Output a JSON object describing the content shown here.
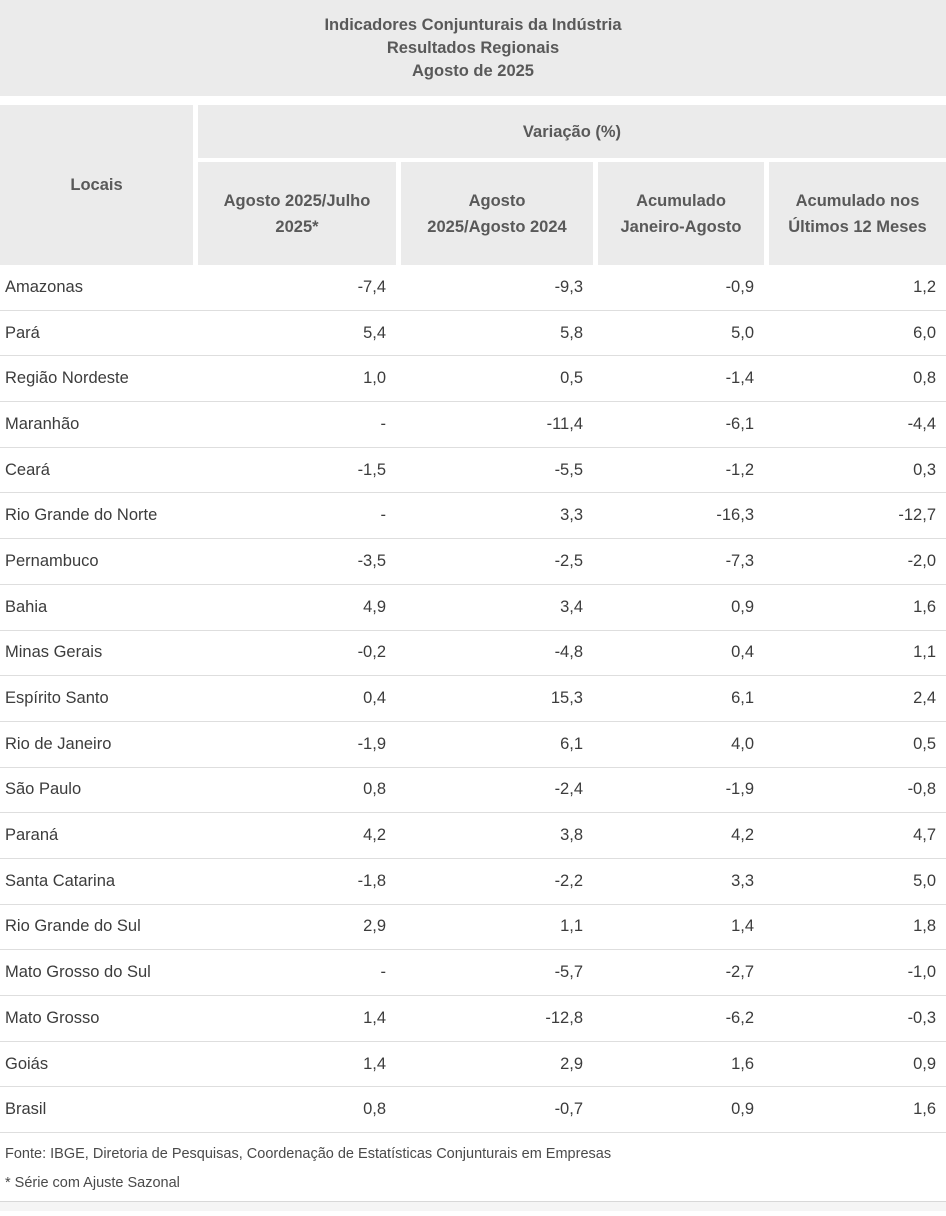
{
  "header": {
    "title_lines": [
      "Indicadores Conjunturais da Indústria",
      "Resultados Regionais",
      "Agosto de 2025"
    ]
  },
  "chart_data": {
    "type": "table",
    "title": "Indicadores Conjunturais da Indústria - Resultados Regionais - Agosto de 2025",
    "row_dimension": "Locais",
    "value_unit": "Variação (%)",
    "columns": [
      "Agosto 2025/Julho 2025*",
      "Agosto 2025/Agosto 2024",
      "Acumulado Janeiro-Agosto",
      "Acumulado nos Últimos 12 Meses"
    ],
    "rows": [
      {
        "local": "Amazonas",
        "values": [
          "-7,4",
          "-9,3",
          "-0,9",
          "1,2"
        ]
      },
      {
        "local": "Pará",
        "values": [
          "5,4",
          "5,8",
          "5,0",
          "6,0"
        ]
      },
      {
        "local": "Região Nordeste",
        "values": [
          "1,0",
          "0,5",
          "-1,4",
          "0,8"
        ]
      },
      {
        "local": "Maranhão",
        "values": [
          "-",
          "-11,4",
          "-6,1",
          "-4,4"
        ]
      },
      {
        "local": "Ceará",
        "values": [
          "-1,5",
          "-5,5",
          "-1,2",
          "0,3"
        ]
      },
      {
        "local": "Rio Grande do Norte",
        "values": [
          "-",
          "3,3",
          "-16,3",
          "-12,7"
        ]
      },
      {
        "local": "Pernambuco",
        "values": [
          "-3,5",
          "-2,5",
          "-7,3",
          "-2,0"
        ]
      },
      {
        "local": "Bahia",
        "values": [
          "4,9",
          "3,4",
          "0,9",
          "1,6"
        ]
      },
      {
        "local": "Minas Gerais",
        "values": [
          "-0,2",
          "-4,8",
          "0,4",
          "1,1"
        ]
      },
      {
        "local": "Espírito Santo",
        "values": [
          "0,4",
          "15,3",
          "6,1",
          "2,4"
        ]
      },
      {
        "local": "Rio de Janeiro",
        "values": [
          "-1,9",
          "6,1",
          "4,0",
          "0,5"
        ]
      },
      {
        "local": "São Paulo",
        "values": [
          "0,8",
          "-2,4",
          "-1,9",
          "-0,8"
        ]
      },
      {
        "local": "Paraná",
        "values": [
          "4,2",
          "3,8",
          "4,2",
          "4,7"
        ]
      },
      {
        "local": "Santa Catarina",
        "values": [
          "-1,8",
          "-2,2",
          "3,3",
          "5,0"
        ]
      },
      {
        "local": "Rio Grande do Sul",
        "values": [
          "2,9",
          "1,1",
          "1,4",
          "1,8"
        ]
      },
      {
        "local": "Mato Grosso do Sul",
        "values": [
          "-",
          "-5,7",
          "-2,7",
          "-1,0"
        ]
      },
      {
        "local": "Mato Grosso",
        "values": [
          "1,4",
          "-12,8",
          "-6,2",
          "-0,3"
        ]
      },
      {
        "local": "Goiás",
        "values": [
          "1,4",
          "2,9",
          "1,6",
          "0,9"
        ]
      },
      {
        "local": "Brasil",
        "values": [
          "0,8",
          "-0,7",
          "0,9",
          "1,6"
        ]
      }
    ]
  },
  "footer": {
    "source": "Fonte: IBGE, Diretoria de Pesquisas, Coordenação de Estatísticas Conjunturais em Empresas",
    "note": "* Série com Ajuste Sazonal"
  },
  "colors": {
    "band_bg": "#ebebeb",
    "header_text": "#595959",
    "body_text": "#3c3c3c",
    "row_border": "#dedede",
    "bottom_strip_bg": "#f5f5f5"
  }
}
